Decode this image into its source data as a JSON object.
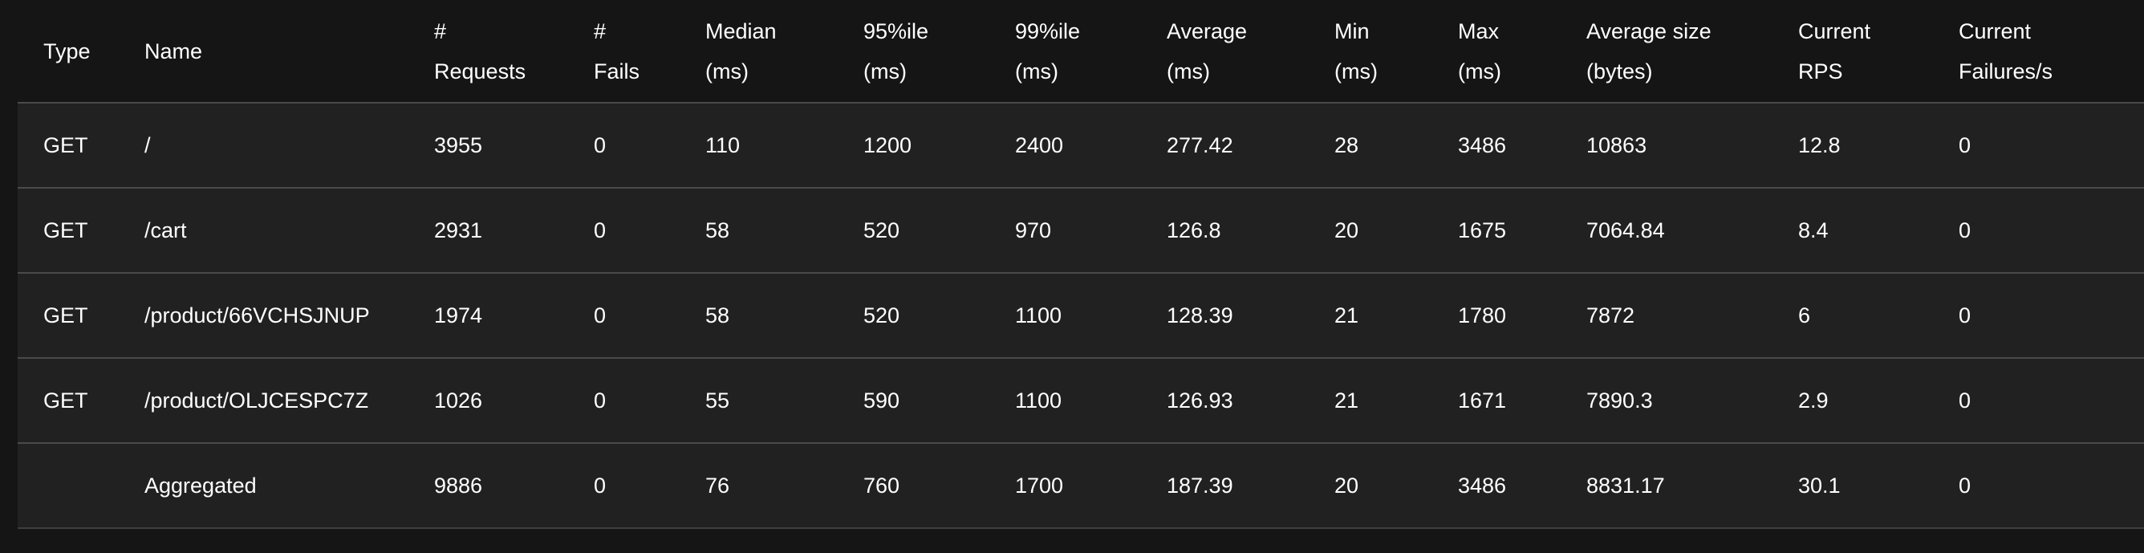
{
  "table": {
    "columns": [
      {
        "key": "type",
        "lines": [
          "Type"
        ]
      },
      {
        "key": "name",
        "lines": [
          "Name"
        ]
      },
      {
        "key": "requests",
        "lines": [
          "#",
          "Requests"
        ]
      },
      {
        "key": "fails",
        "lines": [
          "#",
          "Fails"
        ]
      },
      {
        "key": "median",
        "lines": [
          "Median",
          "(ms)"
        ]
      },
      {
        "key": "p95",
        "lines": [
          "95%ile",
          "(ms)"
        ]
      },
      {
        "key": "p99",
        "lines": [
          "99%ile",
          "(ms)"
        ]
      },
      {
        "key": "average",
        "lines": [
          "Average",
          "(ms)"
        ]
      },
      {
        "key": "min",
        "lines": [
          "Min",
          "(ms)"
        ]
      },
      {
        "key": "max",
        "lines": [
          "Max",
          "(ms)"
        ]
      },
      {
        "key": "avg_size",
        "lines": [
          "Average size",
          "(bytes)"
        ]
      },
      {
        "key": "rps",
        "lines": [
          "Current",
          "RPS"
        ]
      },
      {
        "key": "failures_s",
        "lines": [
          "Current",
          "Failures/s"
        ]
      }
    ],
    "rows": [
      {
        "type": "GET",
        "name": "/",
        "requests": "3955",
        "fails": "0",
        "median": "110",
        "p95": "1200",
        "p99": "2400",
        "average": "277.42",
        "min": "28",
        "max": "3486",
        "avg_size": "10863",
        "rps": "12.8",
        "failures_s": "0"
      },
      {
        "type": "GET",
        "name": "/cart",
        "requests": "2931",
        "fails": "0",
        "median": "58",
        "p95": "520",
        "p99": "970",
        "average": "126.8",
        "min": "20",
        "max": "1675",
        "avg_size": "7064.84",
        "rps": "8.4",
        "failures_s": "0"
      },
      {
        "type": "GET",
        "name": "/product/66VCHSJNUP",
        "requests": "1974",
        "fails": "0",
        "median": "58",
        "p95": "520",
        "p99": "1100",
        "average": "128.39",
        "min": "21",
        "max": "1780",
        "avg_size": "7872",
        "rps": "6",
        "failures_s": "0"
      },
      {
        "type": "GET",
        "name": "/product/OLJCESPC7Z",
        "requests": "1026",
        "fails": "0",
        "median": "55",
        "p95": "590",
        "p99": "1100",
        "average": "126.93",
        "min": "21",
        "max": "1671",
        "avg_size": "7890.3",
        "rps": "2.9",
        "failures_s": "0"
      },
      {
        "type": "",
        "name": "Aggregated",
        "requests": "9886",
        "fails": "0",
        "median": "76",
        "p95": "760",
        "p99": "1700",
        "average": "187.39",
        "min": "20",
        "max": "3486",
        "avg_size": "8831.17",
        "rps": "30.1",
        "failures_s": "0"
      }
    ]
  },
  "colors": {
    "background": "#151515",
    "row_background": "#212121",
    "divider": "#4a4a4a",
    "text": "#ffffff"
  }
}
